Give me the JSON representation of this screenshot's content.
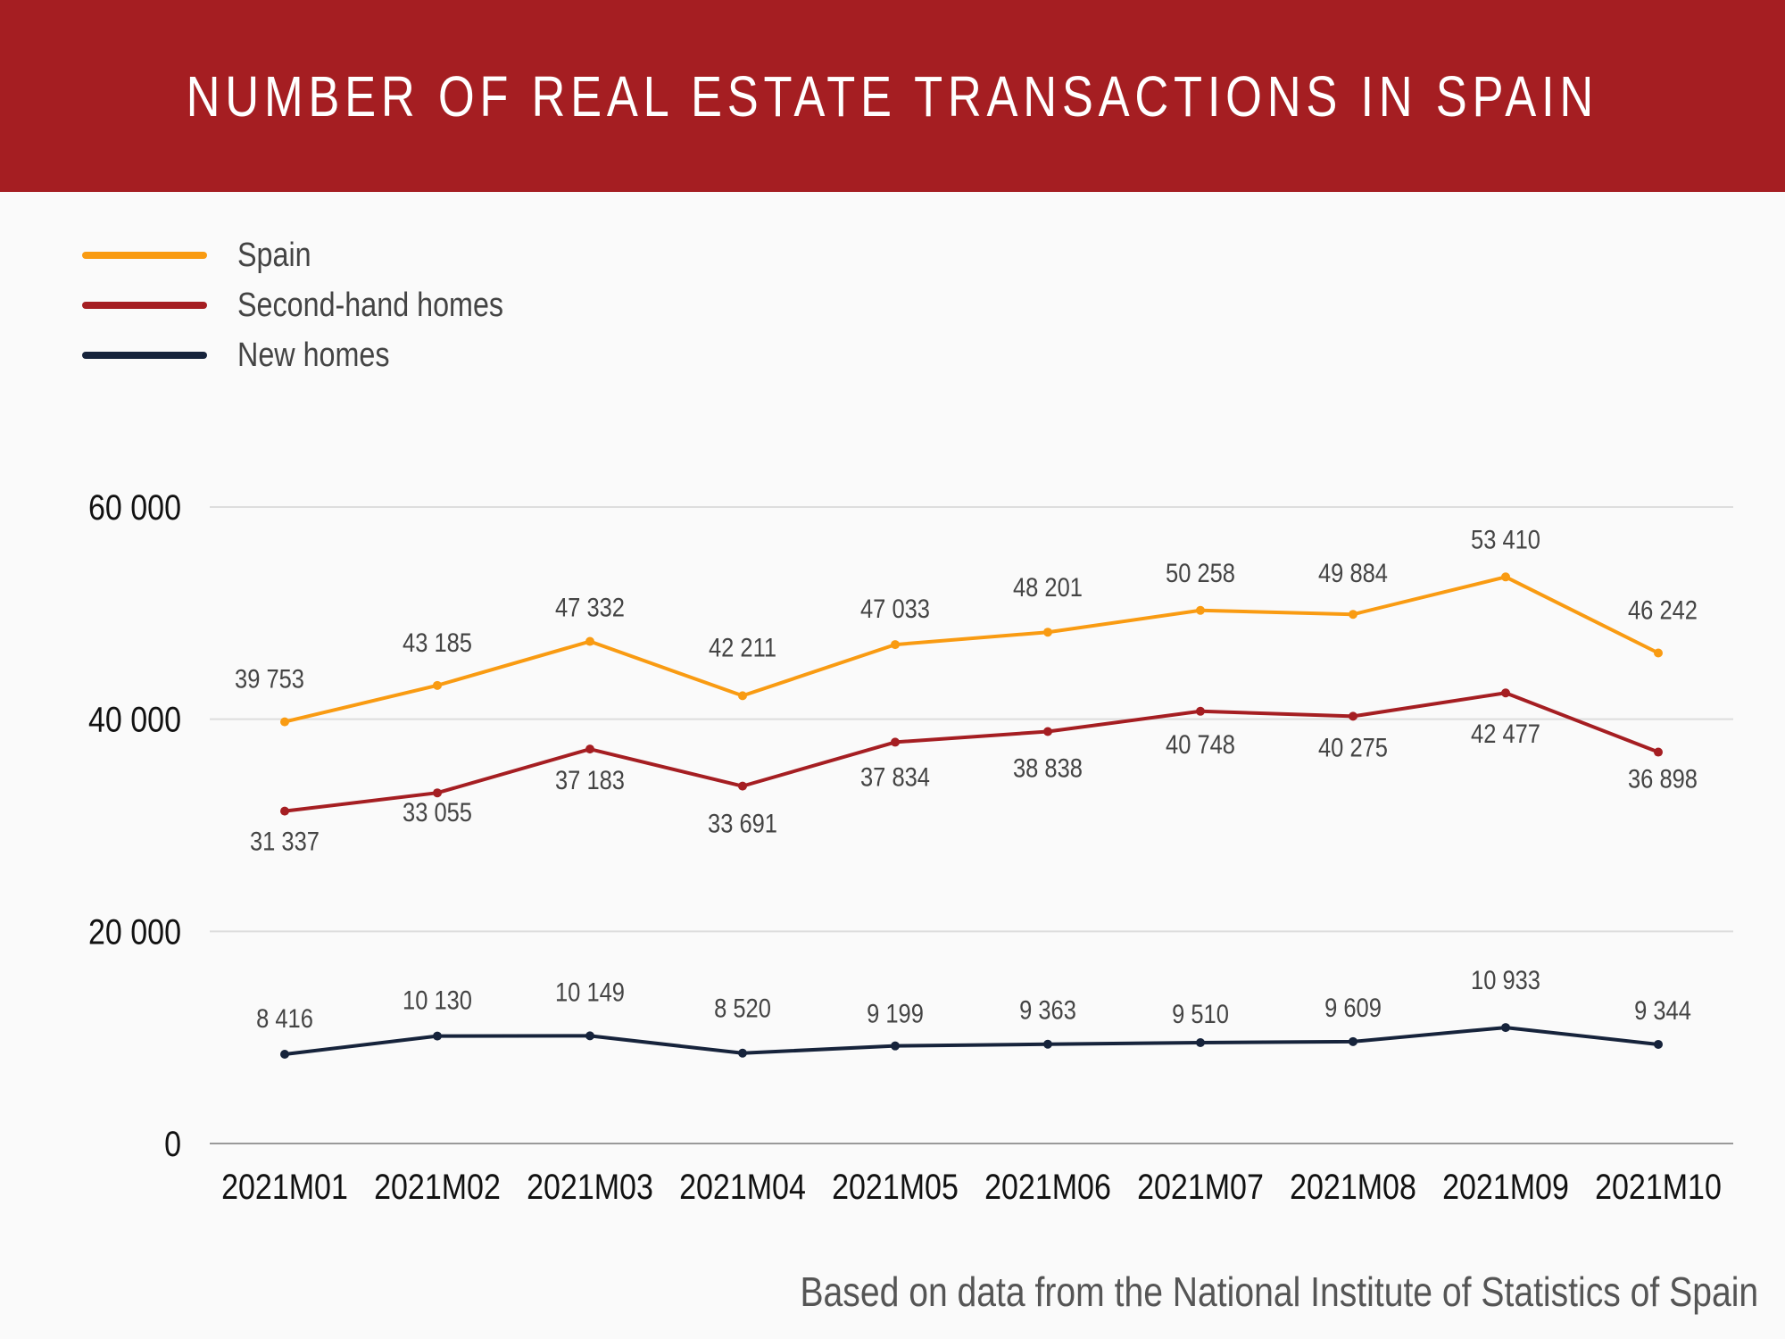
{
  "header": {
    "title": "NUMBER OF REAL ESTATE TRANSACTIONS IN SPAIN"
  },
  "footer": {
    "source": "Based on data from the National Institute of Statistics of Spain"
  },
  "colors": {
    "header_bg": "#a51e22",
    "background": "#fafafa",
    "grid": "#dddddd",
    "axis": "#999999",
    "spain": "#f99b12",
    "second_hand": "#a51e22",
    "new_homes": "#16233b",
    "data_label": "#444444",
    "tick_label": "#111111"
  },
  "chart_data": {
    "type": "line",
    "title": "NUMBER OF REAL ESTATE TRANSACTIONS IN SPAIN",
    "xlabel": "",
    "ylabel": "",
    "ylim": [
      0,
      60000
    ],
    "yticks": [
      0,
      20000,
      40000,
      60000
    ],
    "ytick_labels": [
      "0",
      "20 000",
      "40 000",
      "60 000"
    ],
    "grid": "horizontal",
    "legend_position": "top-left",
    "categories": [
      "2021M01",
      "2021M02",
      "2021M03",
      "2021M04",
      "2021M05",
      "2021M06",
      "2021M07",
      "2021M08",
      "2021M09",
      "2021M10"
    ],
    "series": [
      {
        "name": "Spain",
        "color": "#f99b12",
        "values": [
          39753,
          43185,
          47332,
          42211,
          47033,
          48201,
          50258,
          49884,
          53410,
          46242
        ],
        "labels": [
          "39 753",
          "43 185",
          "47 332",
          "42 211",
          "47 033",
          "48 201",
          "50 258",
          "49 884",
          "53 410",
          "46 242"
        ]
      },
      {
        "name": "Second-hand homes",
        "color": "#a51e22",
        "values": [
          31337,
          33055,
          37183,
          33691,
          37834,
          38838,
          40748,
          40275,
          42477,
          36898
        ],
        "labels": [
          "31 337",
          "33 055",
          "37 183",
          "33 691",
          "37 834",
          "38 838",
          "40 748",
          "40 275",
          "42 477",
          "36 898"
        ]
      },
      {
        "name": "New homes",
        "color": "#16233b",
        "values": [
          8416,
          10130,
          10149,
          8520,
          9199,
          9363,
          9510,
          9609,
          10933,
          9344
        ],
        "labels": [
          "8 416",
          "10 130",
          "10 149",
          "8 520",
          "9 199",
          "9 363",
          "9 510",
          "9 609",
          "10 933",
          "9 344"
        ]
      }
    ]
  }
}
